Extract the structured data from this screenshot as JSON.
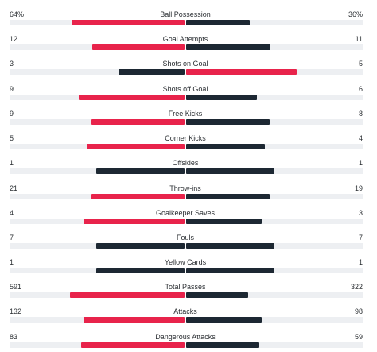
{
  "colors": {
    "home_highlight": "#e8234b",
    "away_highlight": "#e8234b",
    "dark": "#1d2833",
    "track": "#edeff2"
  },
  "stats": [
    {
      "label": "Ball Possession",
      "home": "64%",
      "away": "36%",
      "home_frac": 0.64,
      "away_frac": 0.36
    },
    {
      "label": "Goal Attempts",
      "home": "12",
      "away": "11",
      "home_frac": 0.522,
      "away_frac": 0.478
    },
    {
      "label": "Shots on Goal",
      "home": "3",
      "away": "5",
      "home_frac": 0.375,
      "away_frac": 0.625
    },
    {
      "label": "Shots off Goal",
      "home": "9",
      "away": "6",
      "home_frac": 0.6,
      "away_frac": 0.4
    },
    {
      "label": "Free Kicks",
      "home": "9",
      "away": "8",
      "home_frac": 0.529,
      "away_frac": 0.471
    },
    {
      "label": "Corner Kicks",
      "home": "5",
      "away": "4",
      "home_frac": 0.556,
      "away_frac": 0.444
    },
    {
      "label": "Offsides",
      "home": "1",
      "away": "1",
      "home_frac": 0.5,
      "away_frac": 0.5
    },
    {
      "label": "Throw-ins",
      "home": "21",
      "away": "19",
      "home_frac": 0.525,
      "away_frac": 0.475
    },
    {
      "label": "Goalkeeper Saves",
      "home": "4",
      "away": "3",
      "home_frac": 0.571,
      "away_frac": 0.429
    },
    {
      "label": "Fouls",
      "home": "7",
      "away": "7",
      "home_frac": 0.5,
      "away_frac": 0.5
    },
    {
      "label": "Yellow Cards",
      "home": "1",
      "away": "1",
      "home_frac": 0.5,
      "away_frac": 0.5
    },
    {
      "label": "Total Passes",
      "home": "591",
      "away": "322",
      "home_frac": 0.647,
      "away_frac": 0.353
    },
    {
      "label": "Attacks",
      "home": "132",
      "away": "98",
      "home_frac": 0.574,
      "away_frac": 0.426
    },
    {
      "label": "Dangerous Attacks",
      "home": "83",
      "away": "59",
      "home_frac": 0.585,
      "away_frac": 0.415
    }
  ]
}
